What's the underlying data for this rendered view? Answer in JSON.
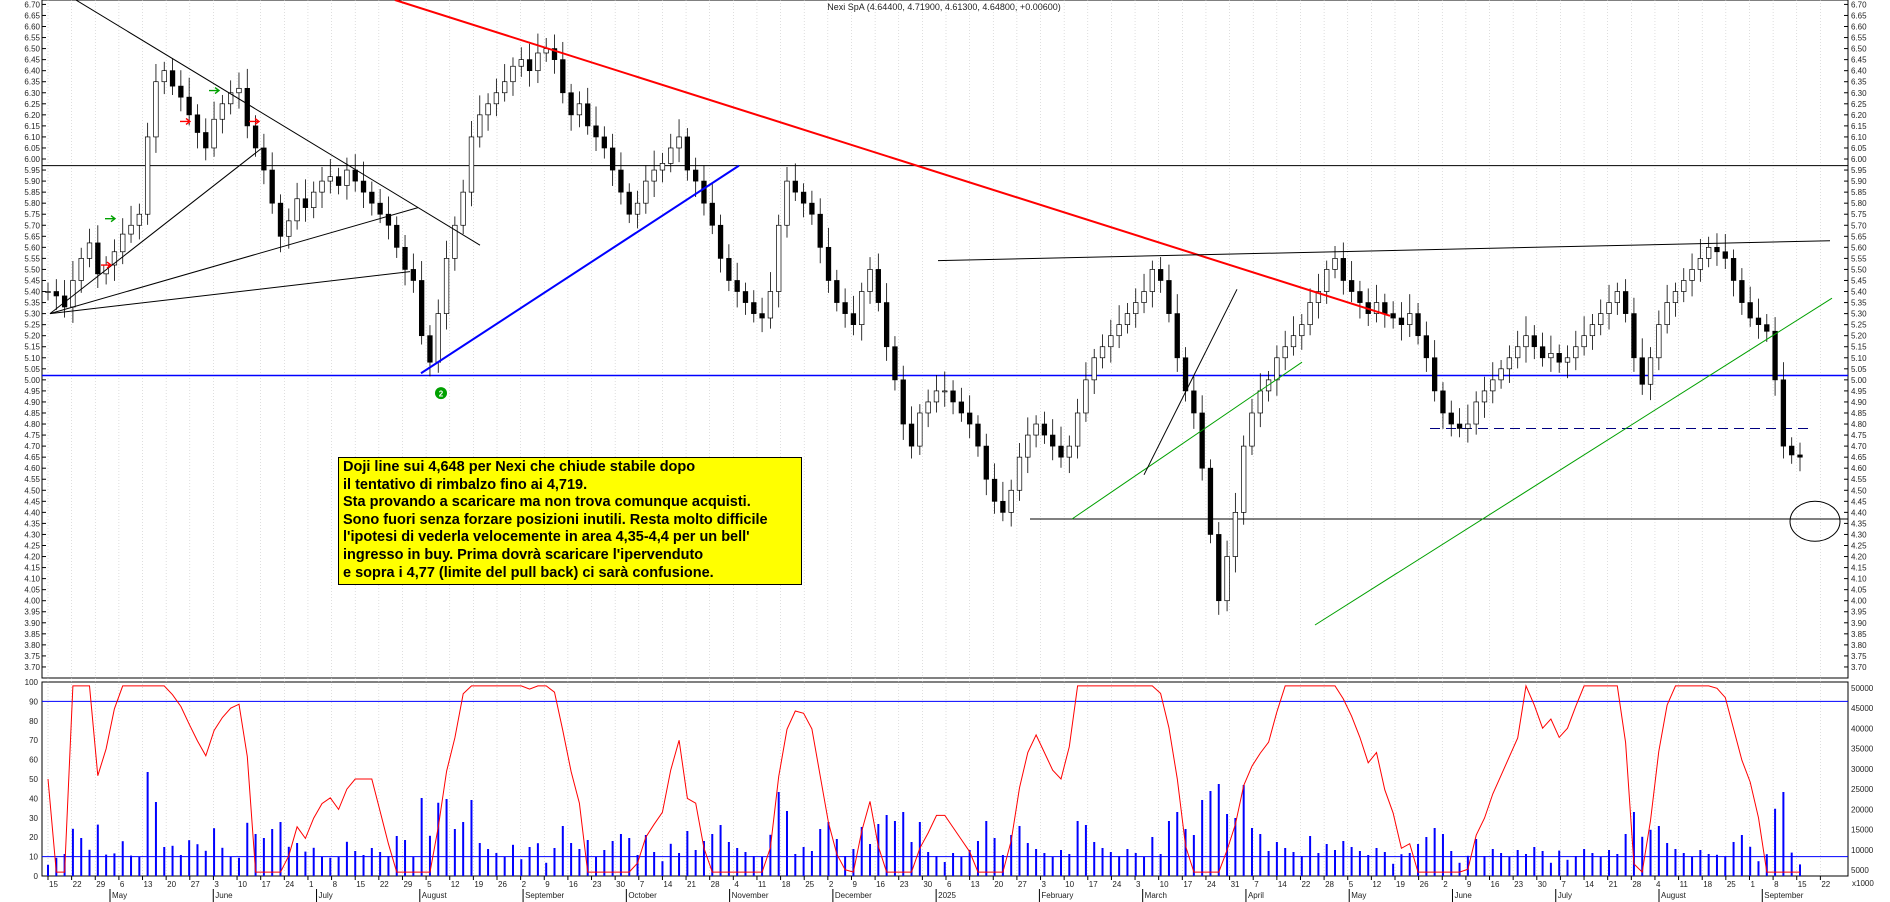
{
  "chart_data": [
    {
      "type": "candlestick",
      "title": "Nexi SpA (4.64400, 4.71900, 4.61300, 4.64800, +0.00600)",
      "ylim": [
        3.65,
        6.72
      ],
      "yticks": [
        "6.70",
        "6.65",
        "6.60",
        "6.55",
        "6.50",
        "6.45",
        "6.40",
        "6.35",
        "6.30",
        "6.25",
        "6.20",
        "6.15",
        "6.10",
        "6.05",
        "6.00",
        "5.95",
        "5.90",
        "5.85",
        "5.80",
        "5.75",
        "5.70",
        "5.65",
        "5.60",
        "5.55",
        "5.50",
        "5.45",
        "5.40",
        "5.35",
        "5.30",
        "5.25",
        "5.20",
        "5.15",
        "5.10",
        "5.05",
        "5.00",
        "4.95",
        "4.90",
        "4.85",
        "4.80",
        "4.75",
        "4.70",
        "4.65",
        "4.60",
        "4.55",
        "4.50",
        "4.45",
        "4.40",
        "4.35",
        "4.30",
        "4.25",
        "4.20",
        "4.15",
        "4.10",
        "4.05",
        "4.00",
        "3.95",
        "3.90",
        "3.85",
        "3.80",
        "3.75",
        "3.70"
      ],
      "xticks_days": [
        "15",
        "22",
        "29",
        "6",
        "13",
        "20",
        "27",
        "3",
        "10",
        "17",
        "24",
        "1",
        "8",
        "15",
        "22",
        "29",
        "5",
        "12",
        "19",
        "26",
        "2",
        "9",
        "16",
        "23",
        "30",
        "7",
        "14",
        "21",
        "28",
        "4",
        "11",
        "18",
        "25",
        "2",
        "9",
        "16",
        "23",
        "30",
        "6",
        "13",
        "20",
        "27",
        "3",
        "10",
        "17",
        "24",
        "3",
        "10",
        "17",
        "24",
        "31",
        "7",
        "14",
        "22",
        "28",
        "5",
        "12",
        "19",
        "26",
        "2",
        "9",
        "16",
        "23",
        "30",
        "7",
        "14",
        "21",
        "28",
        "4",
        "11",
        "18",
        "25",
        "1",
        "8",
        "15",
        "22"
      ],
      "xticks_months": [
        "May",
        "June",
        "July",
        "August",
        "September",
        "October",
        "November",
        "December",
        "2025",
        "February",
        "March",
        "April",
        "May",
        "June",
        "July",
        "August",
        "September"
      ],
      "horizontal_levels": [
        5.97,
        5.02,
        4.78,
        4.37
      ],
      "level_colors": {
        "resistance": "#000000",
        "support_blue": "#0000ff",
        "pullback_dashed": "#000080",
        "target": "#000000"
      },
      "trendline_colors": {
        "red": "#ff0000",
        "blue": "#0000ff",
        "green": "#00a000",
        "black": "#000000"
      },
      "close_series": [
        5.4,
        5.38,
        5.33,
        5.45,
        5.55,
        5.62,
        5.48,
        5.52,
        5.58,
        5.66,
        5.7,
        5.75,
        6.1,
        6.35,
        6.4,
        6.33,
        6.28,
        6.2,
        6.12,
        6.05,
        6.18,
        6.25,
        6.3,
        6.32,
        6.15,
        6.05,
        5.95,
        5.8,
        5.65,
        5.72,
        5.82,
        5.78,
        5.85,
        5.9,
        5.92,
        5.88,
        5.95,
        5.9,
        5.85,
        5.8,
        5.75,
        5.7,
        5.6,
        5.5,
        5.45,
        5.2,
        5.08,
        5.3,
        5.55,
        5.7,
        5.85,
        6.1,
        6.2,
        6.25,
        6.3,
        6.35,
        6.42,
        6.45,
        6.4,
        6.48,
        6.5,
        6.45,
        6.3,
        6.2,
        6.25,
        6.15,
        6.1,
        6.05,
        5.95,
        5.85,
        5.75,
        5.8,
        5.9,
        5.95,
        5.98,
        6.05,
        6.1,
        5.95,
        5.9,
        5.8,
        5.7,
        5.55,
        5.45,
        5.4,
        5.35,
        5.3,
        5.28,
        5.4,
        5.7,
        5.9,
        5.85,
        5.8,
        5.75,
        5.6,
        5.45,
        5.35,
        5.3,
        5.25,
        5.4,
        5.5,
        5.35,
        5.15,
        5.0,
        4.8,
        4.7,
        4.85,
        4.9,
        4.95,
        4.95,
        4.9,
        4.85,
        4.8,
        4.7,
        4.55,
        4.45,
        4.4,
        4.5,
        4.65,
        4.75,
        4.8,
        4.75,
        4.7,
        4.65,
        4.7,
        4.85,
        5.0,
        5.1,
        5.15,
        5.2,
        5.25,
        5.3,
        5.35,
        5.4,
        5.5,
        5.45,
        5.3,
        5.1,
        4.95,
        4.85,
        4.6,
        4.3,
        4.0,
        4.2,
        4.4,
        4.7,
        4.85,
        4.95,
        5.0,
        5.1,
        5.15,
        5.2,
        5.25,
        5.35,
        5.4,
        5.5,
        5.55,
        5.45,
        5.4,
        5.35,
        5.3,
        5.35,
        5.3,
        5.28,
        5.25,
        5.3,
        5.2,
        5.1,
        4.95,
        4.85,
        4.8,
        4.78,
        4.8,
        4.9,
        4.95,
        5.0,
        5.05,
        5.1,
        5.15,
        5.2,
        5.15,
        5.1,
        5.12,
        5.08,
        5.1,
        5.15,
        5.2,
        5.25,
        5.3,
        5.35,
        5.4,
        5.3,
        5.1,
        4.98,
        5.1,
        5.25,
        5.35,
        5.4,
        5.45,
        5.5,
        5.55,
        5.6,
        5.58,
        5.55,
        5.45,
        5.35,
        5.28,
        5.25,
        5.22,
        5.0,
        4.7,
        4.66,
        4.65
      ]
    },
    {
      "type": "line+bar",
      "ylim": [
        0,
        100
      ],
      "yticks_left": [
        "100",
        "90",
        "80",
        "70",
        "60",
        "50",
        "40",
        "30",
        "20",
        "10",
        "0"
      ],
      "yticks_right": [
        "50000",
        "45000",
        "40000",
        "35000",
        "30000",
        "25000",
        "20000",
        "15000",
        "10000",
        "5000"
      ],
      "right_axis_unit": "x1000",
      "levels": [
        90,
        10
      ],
      "oscillator_color": "#ff0000",
      "volume_color": "#0000ff"
    }
  ],
  "annotation": {
    "lines": [
      "Doji line sui 4,648 per Nexi che chiude stabile dopo",
      "il tentativo di rimbalzo fino ai 4,719.",
      "Sta provando a scaricare ma non trova comunque acquisti.",
      "Sono fuori senza forzare posizioni inutili. Resta molto difficile",
      "l'ipotesi di vederla velocemente in area 4,35-4,4 per un bell'",
      "ingresso in buy. Prima dovrà scaricare l'ipervenduto",
      "e sopra i 4,77 (limite del pull back) ci sarà confusione."
    ]
  },
  "marker_label": "2"
}
